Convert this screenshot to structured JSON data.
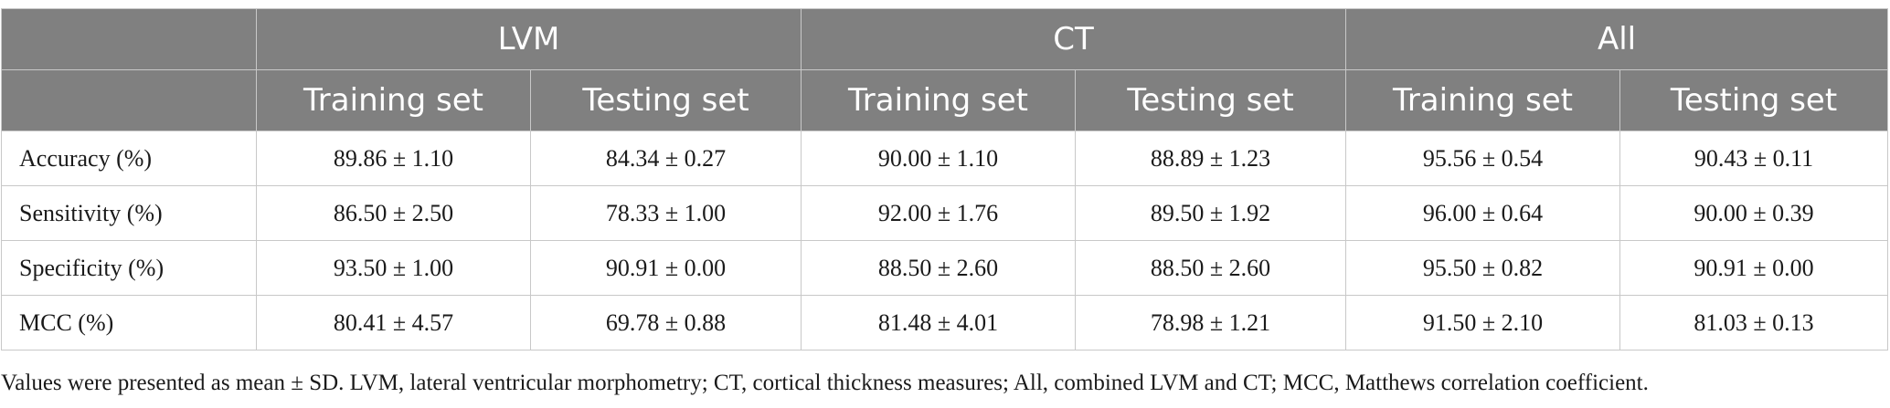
{
  "table": {
    "groups": [
      "LVM",
      "CT",
      "All"
    ],
    "subheaders": [
      "Training set",
      "Testing set",
      "Training set",
      "Testing set",
      "Training set",
      "Testing set"
    ],
    "rows": [
      {
        "metric": "Accuracy (%)",
        "values": [
          "89.86 ± 1.10",
          "84.34 ± 0.27",
          "90.00 ± 1.10",
          "88.89 ± 1.23",
          "95.56 ± 0.54",
          "90.43 ± 0.11"
        ]
      },
      {
        "metric": "Sensitivity (%)",
        "values": [
          "86.50 ± 2.50",
          "78.33 ± 1.00",
          "92.00 ± 1.76",
          "89.50 ± 1.92",
          "96.00 ± 0.64",
          "90.00 ± 0.39"
        ]
      },
      {
        "metric": "Specificity (%)",
        "values": [
          "93.50 ± 1.00",
          "90.91 ± 0.00",
          "88.50 ± 2.60",
          "88.50 ± 2.60",
          "95.50 ± 0.82",
          "90.91 ± 0.00"
        ]
      },
      {
        "metric": "MCC (%)",
        "values": [
          "80.41 ± 4.57",
          "69.78 ± 0.88",
          "81.48 ± 4.01",
          "78.98 ± 1.21",
          "91.50 ± 2.10",
          "81.03 ± 0.13"
        ]
      }
    ]
  },
  "footnote": "Values were presented as mean ± SD. LVM, lateral ventricular morphometry; CT, cortical thickness measures; All, combined LVM and CT; MCC, Matthews correlation coefficient."
}
